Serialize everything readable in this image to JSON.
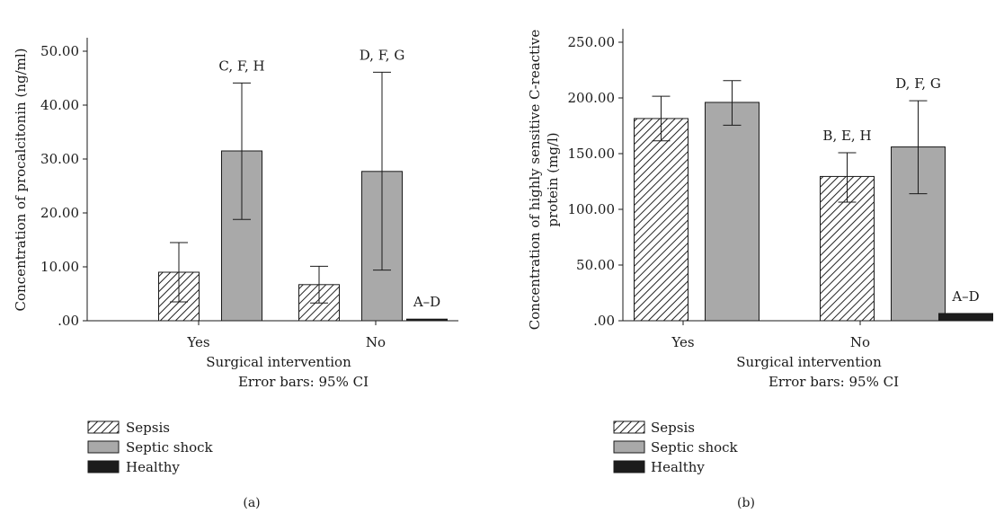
{
  "colors": {
    "sepsis_fill": "#ffffff",
    "sepsis_hatch": "#222222",
    "septic_shock": "#a9a9a9",
    "healthy": "#1c1c1c",
    "stroke": "#1a1a1a"
  },
  "chart_data": [
    {
      "type": "bar",
      "panel_label": "(a)",
      "categories": [
        "Yes",
        "No"
      ],
      "xlabel": "Surgical intervention",
      "ylabel": "Concentration of procalcitonin (ng/ml)",
      "note": "Error bars: 95% CI",
      "ylim": [
        0,
        52
      ],
      "yticks": [
        0,
        10,
        20,
        30,
        40,
        50
      ],
      "ytick_labels": [
        ".00",
        "10.00",
        "20.00",
        "30.00",
        "40.00",
        "50.00"
      ],
      "series": [
        {
          "name": "Sepsis",
          "values": [
            9.0,
            6.7
          ],
          "ci_low": [
            3.5,
            3.3
          ],
          "ci_high": [
            14.5,
            10.1
          ]
        },
        {
          "name": "Septic shock",
          "values": [
            31.5,
            27.7
          ],
          "ci_low": [
            18.8,
            9.4
          ],
          "ci_high": [
            44.1,
            46.1
          ]
        },
        {
          "name": "Healthy",
          "values": [
            null,
            0.3
          ],
          "ci_low": [
            null,
            null
          ],
          "ci_high": [
            null,
            null
          ]
        }
      ],
      "annotations": [
        {
          "text": "C, F, H",
          "category": 0,
          "series": 1
        },
        {
          "text": "D, F, G",
          "category": 1,
          "series": 1
        },
        {
          "text": "A–D",
          "category": 1,
          "series": 2
        }
      ],
      "legend": [
        "Sepsis",
        "Septic shock",
        "Healthy"
      ]
    },
    {
      "type": "bar",
      "panel_label": "(b)",
      "categories": [
        "Yes",
        "No"
      ],
      "xlabel": "Surgical intervention",
      "ylabel": "Concentration of highly sensitive C-reactive protein (mg/l)",
      "ylabel_lines": [
        "Concentration of highly sensitive C-reactive",
        "protein (mg/l)"
      ],
      "note": "Error bars: 95% CI",
      "ylim": [
        0,
        260
      ],
      "yticks": [
        0,
        50,
        100,
        150,
        200,
        250
      ],
      "ytick_labels": [
        ".00",
        "50.00",
        "100.00",
        "150.00",
        "200.00",
        "250.00"
      ],
      "series": [
        {
          "name": "Sepsis",
          "values": [
            181.5,
            129.5
          ],
          "ci_low": [
            161.5,
            106.5
          ],
          "ci_high": [
            201.5,
            150.8
          ]
        },
        {
          "name": "Septic shock",
          "values": [
            196.0,
            156.0
          ],
          "ci_low": [
            175.5,
            114.0
          ],
          "ci_high": [
            215.5,
            197.5
          ]
        },
        {
          "name": "Healthy",
          "values": [
            null,
            6.5
          ],
          "ci_low": [
            null,
            null
          ],
          "ci_high": [
            null,
            null
          ]
        }
      ],
      "annotations": [
        {
          "text": "B, E, H",
          "category": 1,
          "series": 0
        },
        {
          "text": "D, F, G",
          "category": 1,
          "series": 1
        },
        {
          "text": "A–D",
          "category": 1,
          "series": 2
        }
      ],
      "legend": [
        "Sepsis",
        "Septic shock",
        "Healthy"
      ]
    }
  ]
}
